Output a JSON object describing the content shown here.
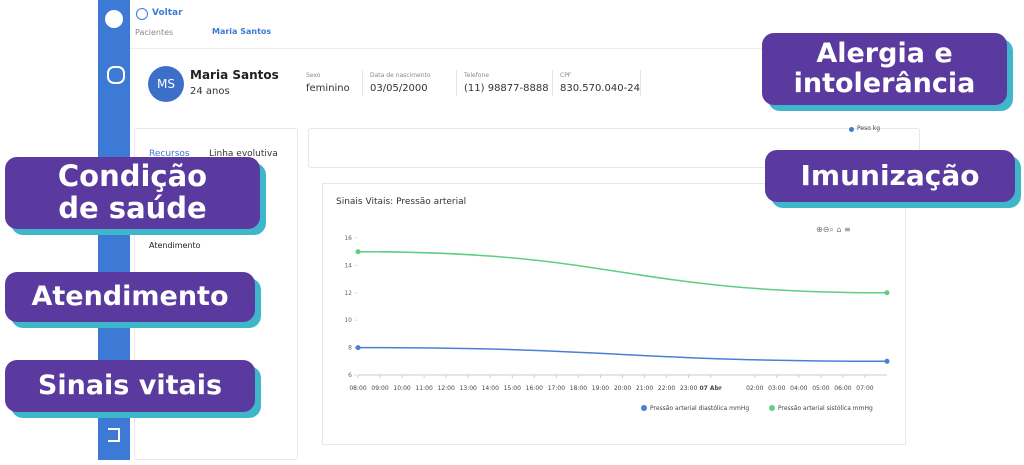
{
  "back": "Voltar",
  "breadcrumb": [
    "Pacientes",
    "Maria Santos"
  ],
  "patient": {
    "initials": "MS",
    "name": "Maria Santos",
    "age": "24 anos",
    "fields": [
      {
        "label": "Sexo",
        "value": "feminino"
      },
      {
        "label": "Data de nascimento",
        "value": "03/05/2000"
      },
      {
        "label": "Telefone",
        "value": "(11) 98877-8888"
      },
      {
        "label": "CPF",
        "value": "830.570.040-24"
      }
    ]
  },
  "tabs": [
    "Recursos",
    "Linha evolutiva"
  ],
  "menu": [
    "Atendimento"
  ],
  "weight_legend": "Peso kg",
  "badges": [
    {
      "lines": [
        "Alergia e",
        "intolerância"
      ]
    },
    {
      "lines": [
        "Imunização"
      ]
    },
    {
      "lines": [
        "Condição",
        "de saúde"
      ]
    },
    {
      "lines": [
        "Atendimento"
      ]
    },
    {
      "lines": [
        "Sinais vitais"
      ]
    }
  ],
  "chart_data": {
    "type": "line",
    "title": "Sinais Vitais: Pressão arterial",
    "x": [
      0,
      24
    ],
    "series": [
      {
        "name": "Pressão arterial diastólica mmHg",
        "color": "#4a7fd4",
        "values": [
          8,
          7
        ]
      },
      {
        "name": "Pressão arterial sistólica mmHg",
        "color": "#5fcf80",
        "values": [
          15,
          12
        ]
      }
    ],
    "xlim": [
      0,
      24
    ],
    "xticks": [
      {
        "value": 0,
        "label": "08:00"
      },
      {
        "value": 1,
        "label": "09:00"
      },
      {
        "value": 2,
        "label": "10:00"
      },
      {
        "value": 3,
        "label": "11:00"
      },
      {
        "value": 4,
        "label": "12:00"
      },
      {
        "value": 5,
        "label": "13:00"
      },
      {
        "value": 6,
        "label": "14:00"
      },
      {
        "value": 7,
        "label": "15:00"
      },
      {
        "value": 8,
        "label": "16:00"
      },
      {
        "value": 9,
        "label": "17:00"
      },
      {
        "value": 10,
        "label": "18:00"
      },
      {
        "value": 11,
        "label": "19:00"
      },
      {
        "value": 12,
        "label": "20:00"
      },
      {
        "value": 13,
        "label": "21:00"
      },
      {
        "value": 14,
        "label": "22:00"
      },
      {
        "value": 15,
        "label": "23:00"
      },
      {
        "value": 16,
        "label": "07 Abr"
      },
      {
        "value": 18,
        "label": "02:00"
      },
      {
        "value": 19,
        "label": "03:00"
      },
      {
        "value": 20,
        "label": "04:00"
      },
      {
        "value": 21,
        "label": "05:00"
      },
      {
        "value": 22,
        "label": "06:00"
      },
      {
        "value": 23,
        "label": "07:00"
      }
    ],
    "ylim": [
      6,
      16
    ],
    "yticks": [
      6,
      8,
      10,
      12,
      14,
      16
    ],
    "legend": "bottom-right"
  }
}
